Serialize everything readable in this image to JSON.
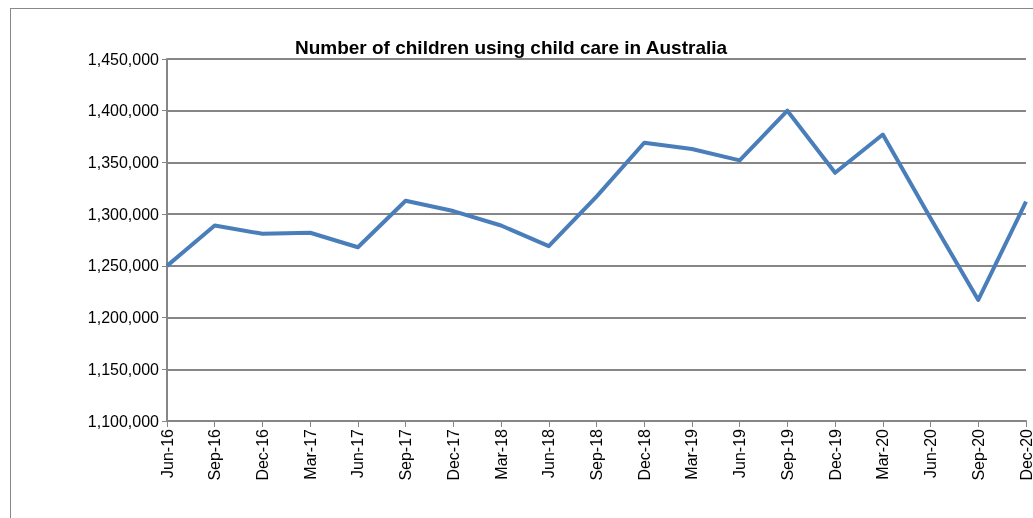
{
  "chart_data": {
    "type": "line",
    "title": "Number of children using child care in Australia",
    "categories": [
      "Jun-16",
      "Sep-16",
      "Dec-16",
      "Mar-17",
      "Jun-17",
      "Sep-17",
      "Dec-17",
      "Mar-18",
      "Jun-18",
      "Sep-18",
      "Dec-18",
      "Mar-19",
      "Jun-19",
      "Sep-19",
      "Dec-19",
      "Mar-20",
      "Jun-20",
      "Sep-20",
      "Dec-20"
    ],
    "series": [
      {
        "color": "#4a7ebb",
        "values": [
          1250000,
          1289000,
          1281000,
          1282000,
          1268000,
          1313000,
          1303000,
          1289000,
          1269000,
          1317000,
          1369000,
          1363000,
          1352000,
          1400000,
          1340000,
          1377000,
          1296000,
          1217000,
          1312000
        ]
      }
    ],
    "ylim": [
      1100000,
      1450000
    ],
    "yticks": [
      {
        "value": 1100000,
        "label": "1,100,000"
      },
      {
        "value": 1150000,
        "label": "1,150,000"
      },
      {
        "value": 1200000,
        "label": "1,200,000"
      },
      {
        "value": 1250000,
        "label": "1,250,000"
      },
      {
        "value": 1300000,
        "label": "1,300,000"
      },
      {
        "value": 1350000,
        "label": "1,350,000"
      },
      {
        "value": 1400000,
        "label": "1,400,000"
      },
      {
        "value": 1450000,
        "label": "1,450,000"
      }
    ],
    "grid": "y",
    "marker": "none",
    "line_style": "solid"
  }
}
